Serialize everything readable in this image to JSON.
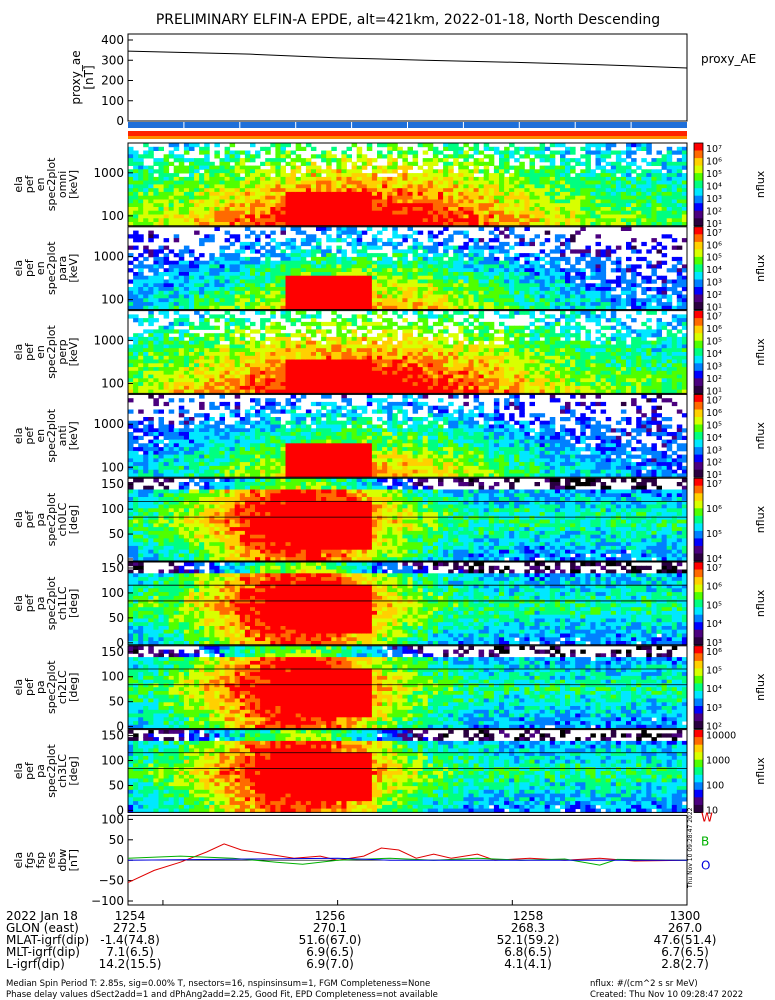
{
  "chart_data": {
    "type": "heatmap",
    "title": "PRELIMINARY ELFIN-A EPDE, alt=421km, 2022-01-18, North Descending",
    "x_tick_labels": [
      "1254",
      "1256",
      "1258",
      "1300"
    ],
    "x_ticks_minutes": [
      0,
      2,
      4,
      6
    ],
    "x_range_minutes": [
      -0.4,
      6.0
    ],
    "proxy_ae": {
      "ylabel": "proxy_ae\n[nT]",
      "legend": "proxy_AE",
      "yticks": [
        "400",
        "300",
        "200",
        "100",
        "0"
      ],
      "ylim": [
        0,
        400
      ],
      "points": [
        [
          -0.4,
          345
        ],
        [
          1,
          330
        ],
        [
          2,
          312
        ],
        [
          3,
          300
        ],
        [
          4,
          290
        ],
        [
          5,
          278
        ],
        [
          6,
          262
        ]
      ]
    },
    "panels": [
      {
        "ylabel": [
          "ela",
          "pef",
          "en",
          "spec2plot",
          "omni",
          "[keV]"
        ],
        "yticks": [
          "1000",
          "100"
        ],
        "scale": "log",
        "cb_labels": [
          "10⁷",
          "10⁶",
          "10⁵",
          "10⁴",
          "10³",
          "10²",
          "10¹"
        ],
        "cb_title": "nflux"
      },
      {
        "ylabel": [
          "ela",
          "pef",
          "en",
          "spec2plot",
          "para",
          "[keV]"
        ],
        "yticks": [
          "1000",
          "100"
        ],
        "scale": "log",
        "cb_labels": [
          "10⁷",
          "10⁶",
          "10⁵",
          "10⁴",
          "10³",
          "10²",
          "10¹"
        ],
        "cb_title": "nflux"
      },
      {
        "ylabel": [
          "ela",
          "pef",
          "en",
          "spec2plot",
          "perp",
          "[keV]"
        ],
        "yticks": [
          "1000",
          "100"
        ],
        "scale": "log",
        "cb_labels": [
          "10⁷",
          "10⁶",
          "10⁵",
          "10⁴",
          "10³",
          "10²",
          "10¹"
        ],
        "cb_title": "nflux"
      },
      {
        "ylabel": [
          "ela",
          "pef",
          "en",
          "spec2plot",
          "anti",
          "[keV]"
        ],
        "yticks": [
          "1000",
          "100"
        ],
        "scale": "log",
        "cb_labels": [
          "10⁷",
          "10⁶",
          "10⁵",
          "10⁴",
          "10³",
          "10²",
          "10¹"
        ],
        "cb_title": "nflux"
      },
      {
        "ylabel": [
          "ela",
          "pef",
          "pa",
          "spec2plot",
          "ch0LC",
          "[deg]"
        ],
        "yticks": [
          "150",
          "100",
          "50",
          "0"
        ],
        "scale": "linear",
        "cb_labels": [
          "10⁷",
          "10⁶",
          "10⁵",
          "10⁴"
        ],
        "cb_title": "nflux"
      },
      {
        "ylabel": [
          "ela",
          "pef",
          "pa",
          "spec2plot",
          "ch1LC",
          "[deg]"
        ],
        "yticks": [
          "150",
          "100",
          "50",
          "0"
        ],
        "scale": "linear",
        "cb_labels": [
          "10⁷",
          "10⁶",
          "10⁵",
          "10⁴",
          "10³"
        ],
        "cb_title": "nflux"
      },
      {
        "ylabel": [
          "ela",
          "pef",
          "pa",
          "spec2plot",
          "ch2LC",
          "[deg]"
        ],
        "yticks": [
          "150",
          "100",
          "50",
          "0"
        ],
        "scale": "linear",
        "cb_labels": [
          "10⁶",
          "10⁵",
          "10⁴",
          "10³",
          "10²"
        ],
        "cb_title": "nflux"
      },
      {
        "ylabel": [
          "ela",
          "pef",
          "pa",
          "spec2plot",
          "ch3LC",
          "[deg]"
        ],
        "yticks": [
          "150",
          "100",
          "50",
          "0"
        ],
        "scale": "linear",
        "cb_labels": [
          "10000",
          "1000",
          "100",
          "10"
        ],
        "cb_title": "nflux"
      }
    ],
    "dbw": {
      "ylabel": [
        "ela",
        "fgs",
        "fsp",
        "res",
        "dbw",
        "[nT]"
      ],
      "yticks": [
        "100",
        "50",
        "0",
        "−50",
        "−100"
      ],
      "ylim": [
        -100,
        100
      ],
      "series": [
        {
          "name": "W",
          "color": "#e00000",
          "points": [
            [
              -0.4,
              -55
            ],
            [
              -0.1,
              -25
            ],
            [
              0.2,
              -5
            ],
            [
              0.5,
              20
            ],
            [
              0.7,
              40
            ],
            [
              0.9,
              25
            ],
            [
              1.2,
              15
            ],
            [
              1.5,
              5
            ],
            [
              1.8,
              10
            ],
            [
              2.0,
              0
            ],
            [
              2.3,
              10
            ],
            [
              2.5,
              30
            ],
            [
              2.7,
              25
            ],
            [
              2.9,
              5
            ],
            [
              3.1,
              15
            ],
            [
              3.3,
              5
            ],
            [
              3.6,
              15
            ],
            [
              3.8,
              0
            ],
            [
              4.2,
              5
            ],
            [
              4.6,
              0
            ],
            [
              5.0,
              5
            ],
            [
              5.4,
              -2
            ],
            [
              6.0,
              0
            ]
          ]
        },
        {
          "name": "B",
          "color": "#00b000",
          "points": [
            [
              -0.4,
              5
            ],
            [
              0.2,
              10
            ],
            [
              0.8,
              5
            ],
            [
              1.3,
              -5
            ],
            [
              1.6,
              -10
            ],
            [
              2.0,
              0
            ],
            [
              2.6,
              5
            ],
            [
              3.1,
              0
            ],
            [
              3.6,
              5
            ],
            [
              4.1,
              0
            ],
            [
              4.6,
              3
            ],
            [
              5.0,
              -12
            ],
            [
              5.2,
              2
            ],
            [
              6.0,
              0
            ]
          ]
        },
        {
          "name": "O",
          "color": "#0000dd",
          "points": [
            [
              -0.4,
              0
            ],
            [
              1.0,
              3
            ],
            [
              2.0,
              5
            ],
            [
              2.6,
              0
            ],
            [
              3.5,
              0
            ],
            [
              6.0,
              0
            ]
          ]
        }
      ]
    },
    "orbit_tables": {
      "date": "2022 Jan 18",
      "times": [
        "1254",
        "1256",
        "1258",
        "1300"
      ],
      "rows": [
        {
          "label": "GLON (east)",
          "values": [
            "272.5",
            "270.1",
            "268.3",
            "267.0"
          ]
        },
        {
          "label": "MLAT-igrf(dip)",
          "values": [
            "-1.4(74.8)",
            "51.6(67.0)",
            "52.1(59.2)",
            "47.6(51.4)"
          ]
        },
        {
          "label": "MLT-igrf(dip)",
          "values": [
            "7.1(6.5)",
            "6.9(6.5)",
            "6.8(6.5)",
            "6.7(6.5)"
          ]
        },
        {
          "label": "L-igrf(dip)",
          "values": [
            "14.2(15.5)",
            "6.9(7.0)",
            "4.1(4.1)",
            "2.8(2.7)"
          ]
        }
      ]
    }
  },
  "footer": {
    "line1_left": "Median Spin Period T: 2.85s, sig=0.00% T, nsectors=16, nspinsinsum=1, FGM Completeness=None",
    "line2_left": "Phase delay values dSect2add=1 and dPhAng2add=2.25, Good Fit, EPD Completeness=not available",
    "line1_right": "nflux: #/(cm^2 s sr MeV)",
    "line2_right": "Created: Thu Nov 10 09:28:47 2022",
    "side_stamp": "Thu Nov 10 09:28:47 2022"
  },
  "colors": {
    "colorbar": [
      "#ff0000",
      "#ff6a00",
      "#ffd000",
      "#d8ff00",
      "#50ff00",
      "#00ff80",
      "#00e8ff",
      "#0080ff",
      "#0000ff",
      "#4b007f",
      "#2a0040"
    ],
    "blue_bar": "#1e6fd9",
    "red_bar": "#ff2400",
    "orange_bar": "#ff8c00"
  }
}
